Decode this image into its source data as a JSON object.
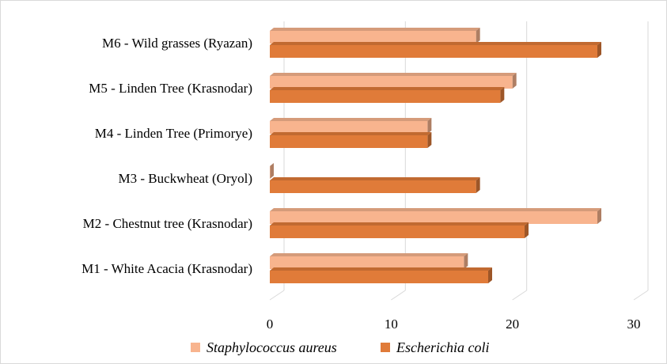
{
  "chart_data": {
    "type": "bar",
    "orientation": "horizontal",
    "style": "3d",
    "categories": [
      "M1 - White Acacia (Krasnodar)",
      "M2 - Chestnut tree (Krasnodar)",
      "M3 - Buckwheat (Oryol)",
      "M4 - Linden Tree (Primorye)",
      "M5 - Linden Tree (Krasnodar)",
      "M6 - Wild grasses  (Ryazan)"
    ],
    "series": [
      {
        "name": "Staphylococcus aureus",
        "color": "#F8B48E",
        "values": [
          16,
          27,
          0,
          13,
          20,
          17
        ]
      },
      {
        "name": "Escherichia coli",
        "color": "#E07B39",
        "values": [
          18,
          21,
          17,
          13,
          19,
          27
        ]
      }
    ],
    "xlim": [
      0,
      30
    ],
    "xticks": [
      "0",
      "10",
      "20",
      "30"
    ],
    "grid": true,
    "legend_position": "bottom"
  }
}
